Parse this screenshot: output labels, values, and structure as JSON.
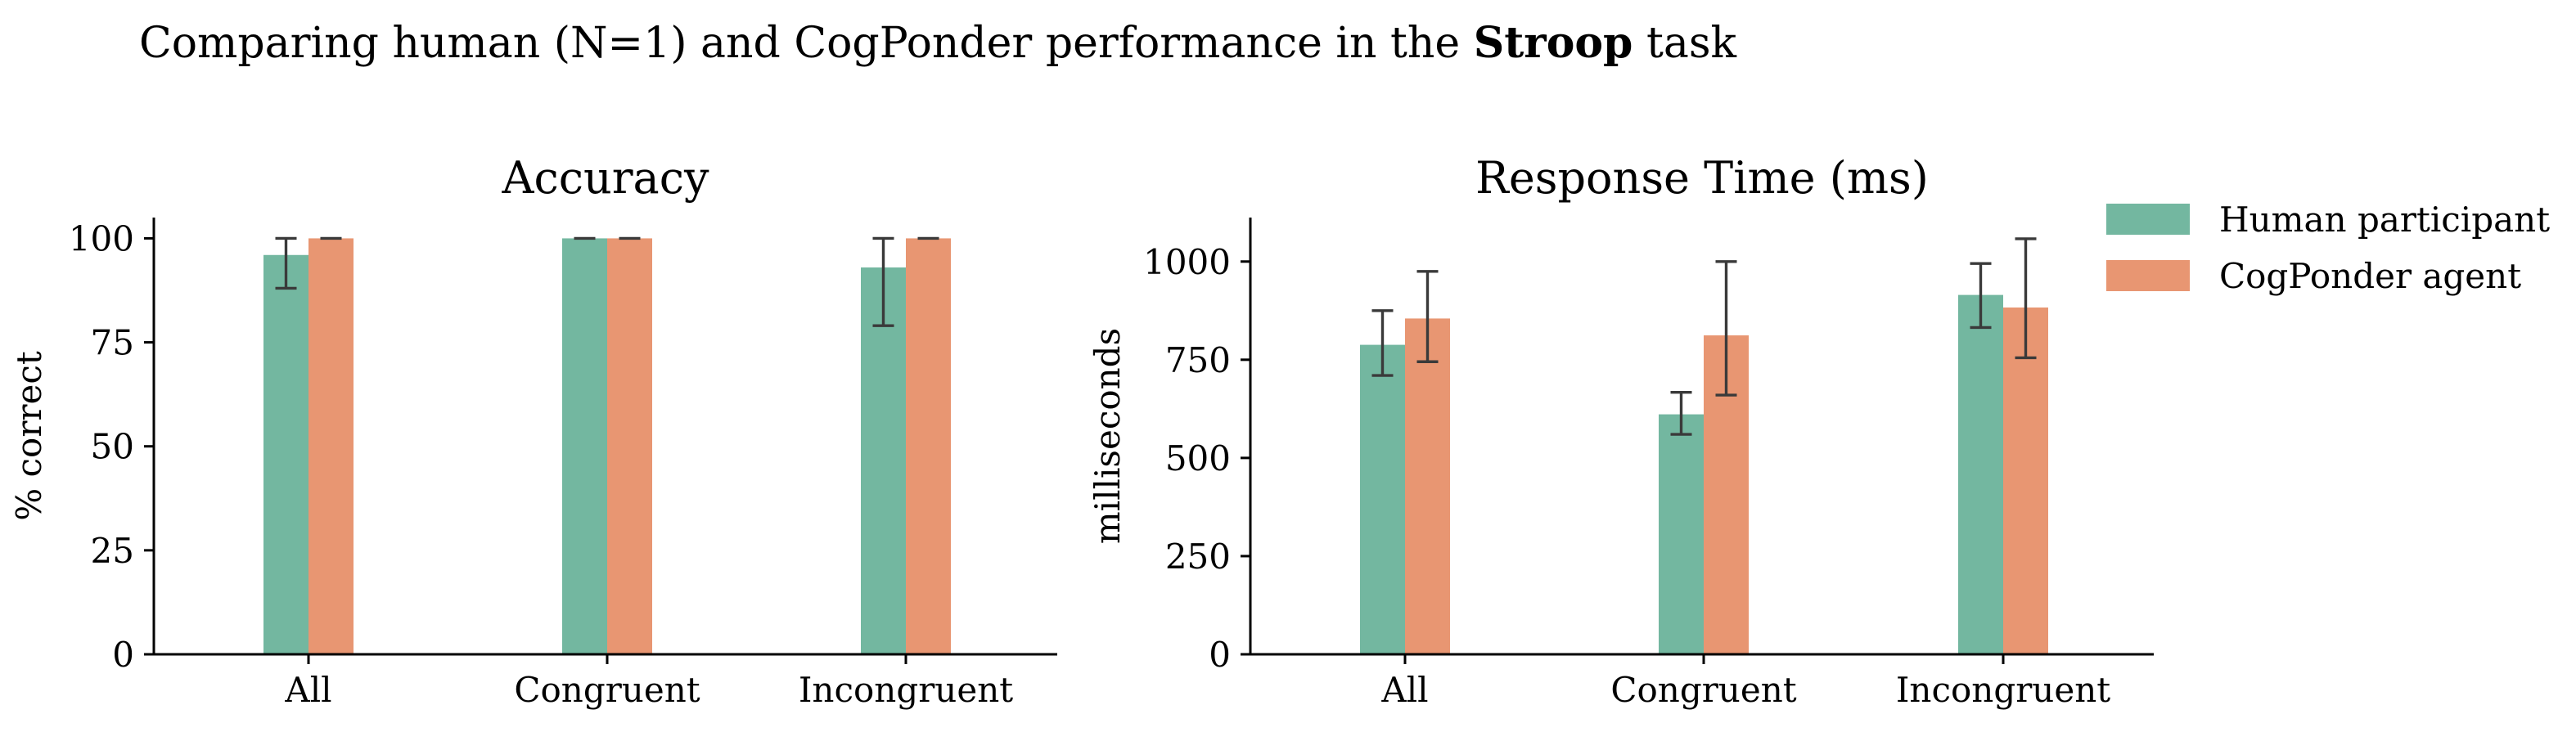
{
  "figure": {
    "title_prefix": "Comparing human (N=1) and CogPonder performance in the ",
    "title_bold": "Stroop",
    "title_suffix": " task"
  },
  "legend": {
    "position": "top-right",
    "entries": [
      {
        "label": "Human participant",
        "color": "#73b7a0"
      },
      {
        "label": "CogPonder agent",
        "color": "#e89672"
      }
    ]
  },
  "chart_data": [
    {
      "type": "bar",
      "title": "Accuracy",
      "xlabel": "",
      "ylabel": "% correct",
      "categories": [
        "All",
        "Congruent",
        "Incongruent"
      ],
      "ylim": [
        0,
        105
      ],
      "yticks": [
        0,
        25,
        50,
        75,
        100
      ],
      "grid": false,
      "series": [
        {
          "name": "Human participant",
          "color": "#73b7a0",
          "values": [
            96,
            100,
            93
          ],
          "err_low": [
            88,
            100,
            79
          ],
          "err_high": [
            100,
            100,
            100
          ]
        },
        {
          "name": "CogPonder agent",
          "color": "#e89672",
          "values": [
            100,
            100,
            100
          ],
          "err_low": [
            100,
            100,
            100
          ],
          "err_high": [
            100,
            100,
            100
          ]
        }
      ]
    },
    {
      "type": "bar",
      "title": "Response Time (ms)",
      "xlabel": "",
      "ylabel": "milliseconds",
      "categories": [
        "All",
        "Congruent",
        "Incongruent"
      ],
      "ylim": [
        0,
        1112
      ],
      "yticks": [
        0,
        250,
        500,
        750,
        1000
      ],
      "grid": false,
      "series": [
        {
          "name": "Human participant",
          "color": "#73b7a0",
          "values": [
            788,
            611,
            915
          ],
          "err_low": [
            710,
            560,
            832
          ],
          "err_high": [
            875,
            667,
            995
          ]
        },
        {
          "name": "CogPonder agent",
          "color": "#e89672",
          "values": [
            855,
            812,
            883
          ],
          "err_low": [
            745,
            660,
            755
          ],
          "err_high": [
            975,
            1000,
            1058
          ]
        }
      ]
    }
  ]
}
